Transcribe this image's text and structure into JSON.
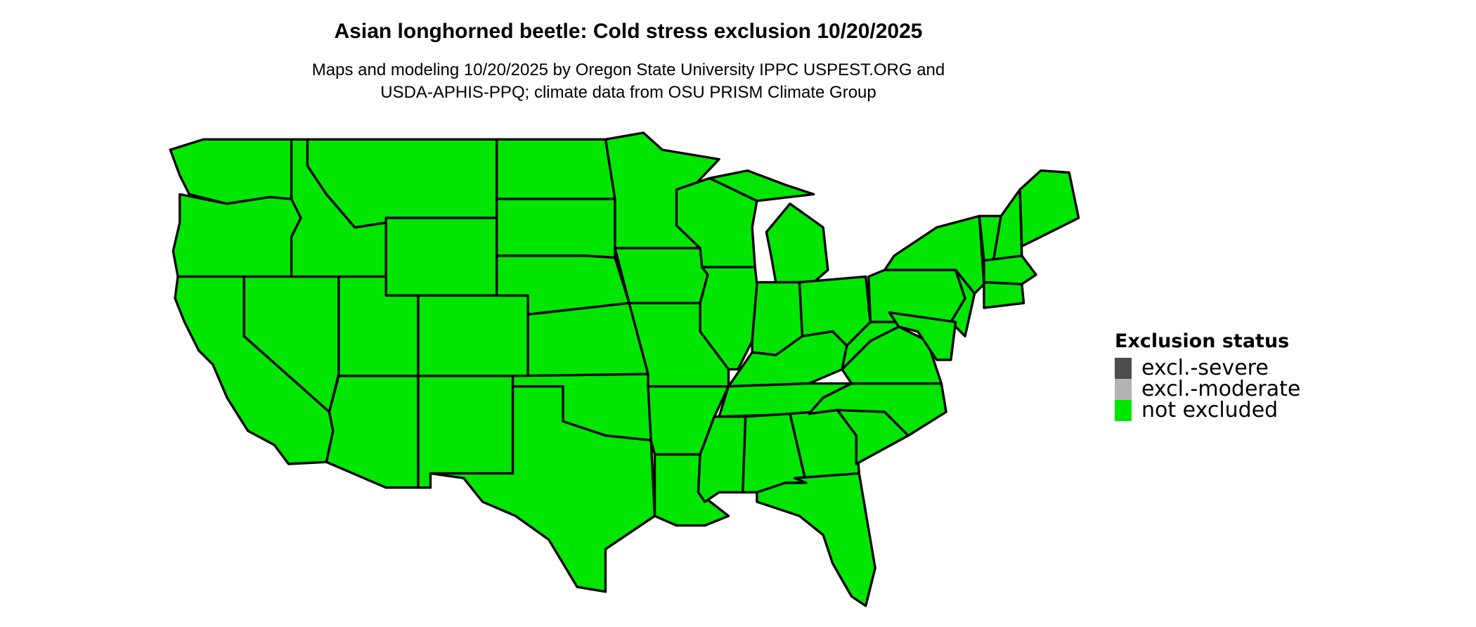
{
  "title": "Asian longhorned beetle: Cold stress exclusion 10/20/2025",
  "subtitle_lines": [
    "Maps and modeling 10/20/2025 by Oregon State University IPPC USPEST.ORG and",
    "USDA-APHIS-PPQ; climate data from OSU PRISM Climate Group"
  ],
  "chart_data": {
    "type": "heatmap",
    "title": "Asian longhorned beetle: Cold stress exclusion 10/20/2025",
    "region": "Contiguous United States",
    "legend": {
      "title": "Exclusion status",
      "placement": "right",
      "items": [
        {
          "label": "excl.-severe",
          "color": "#4d4d4d"
        },
        {
          "label": "excl.-moderate",
          "color": "#b3b3b3"
        },
        {
          "label": "not excluded",
          "color": "#00e600"
        }
      ]
    },
    "map_status": "not excluded",
    "state_border_color": "#000000"
  }
}
